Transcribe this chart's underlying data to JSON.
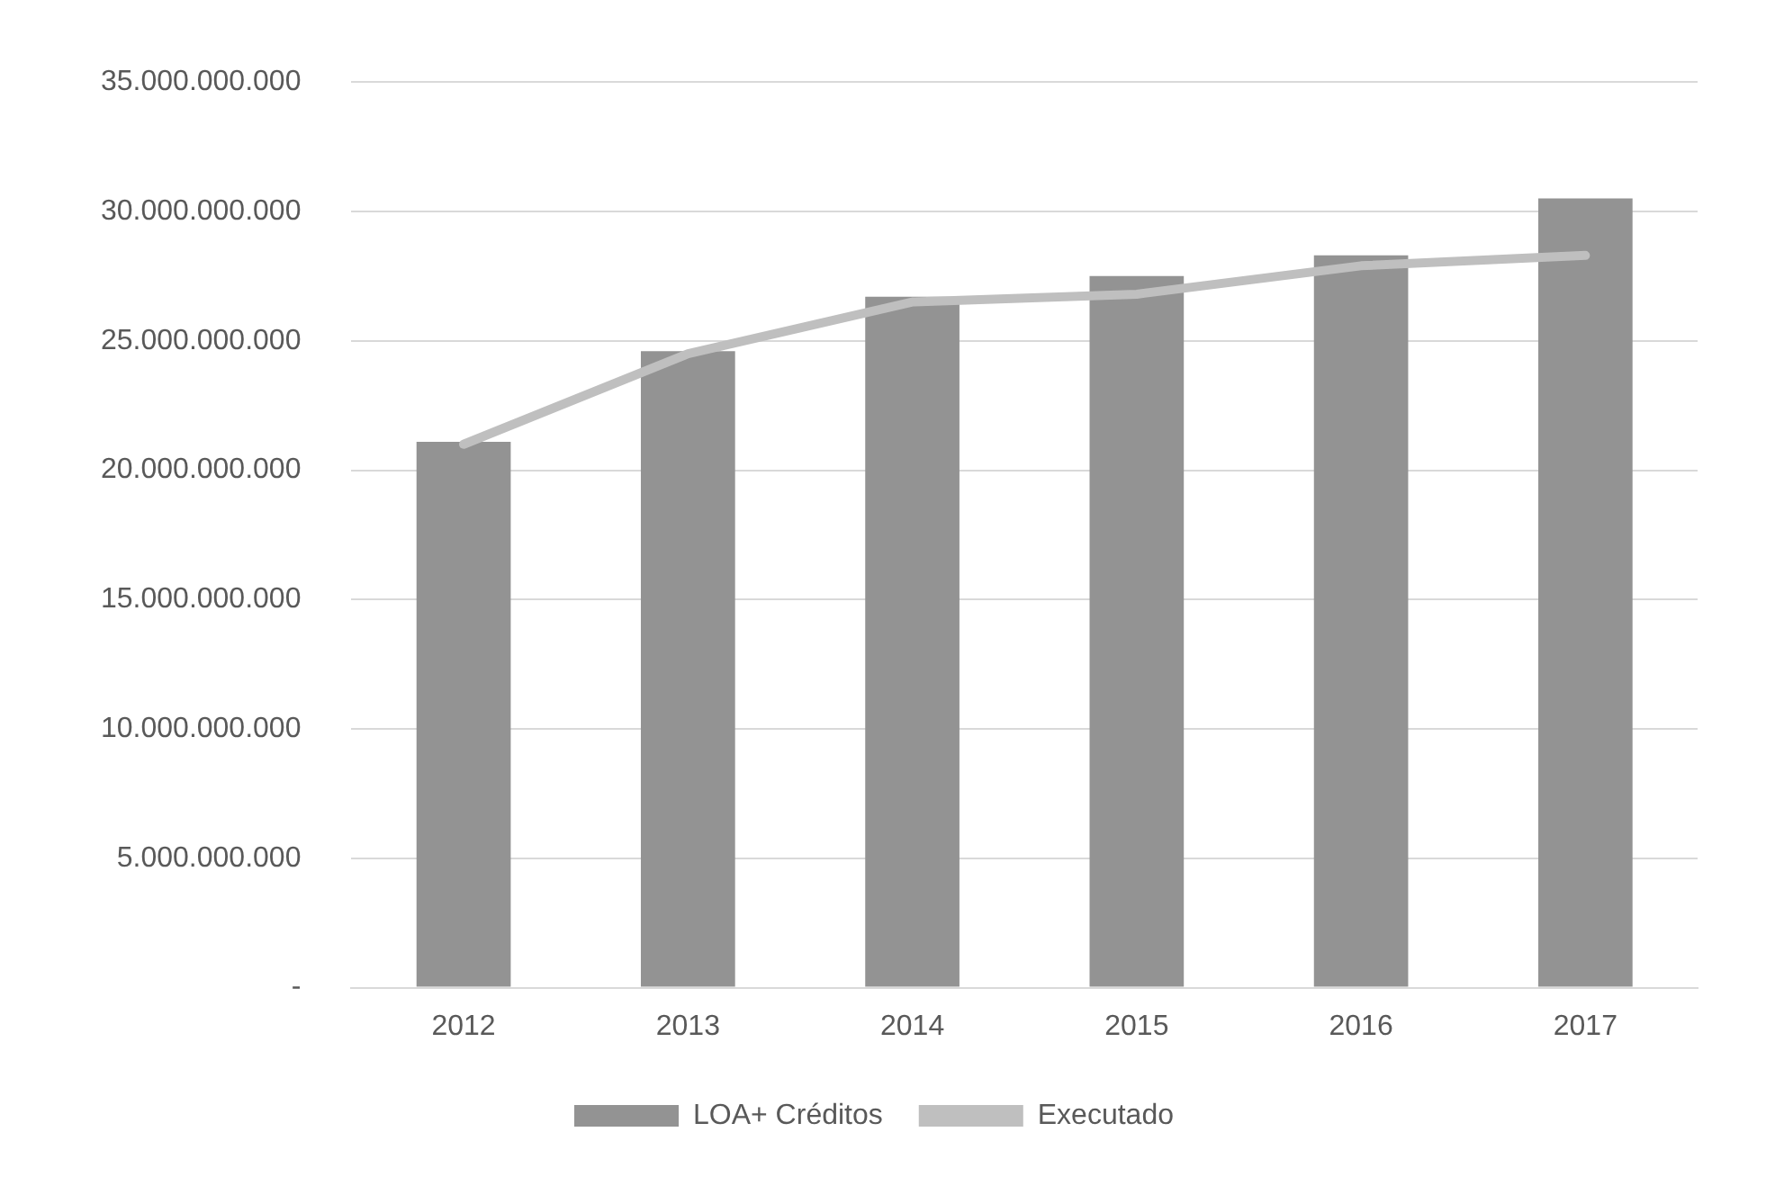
{
  "chart_data": {
    "type": "bar",
    "categories": [
      "2012",
      "2013",
      "2014",
      "2015",
      "2016",
      "2017"
    ],
    "series": [
      {
        "name": "LOA+ Créditos",
        "color": "#939393",
        "values": [
          21100000000,
          24600000000,
          26700000000,
          27500000000,
          28300000000,
          30500000000
        ]
      },
      {
        "name": "Executado",
        "type": "line",
        "color": "#bfbfbf",
        "values": [
          21000000000,
          24500000000,
          26500000000,
          26800000000,
          27900000000,
          28300000000
        ]
      }
    ],
    "ylim": [
      0,
      35000000000
    ],
    "yticks": [
      {
        "value": 0,
        "label": "-"
      },
      {
        "value": 5000000000,
        "label": "5.000.000.000"
      },
      {
        "value": 10000000000,
        "label": "10.000.000.000"
      },
      {
        "value": 15000000000,
        "label": "15.000.000.000"
      },
      {
        "value": 20000000000,
        "label": "20.000.000.000"
      },
      {
        "value": 25000000000,
        "label": "25.000.000.000"
      },
      {
        "value": 30000000000,
        "label": "30.000.000.000"
      },
      {
        "value": 35000000000,
        "label": "35.000.000.000"
      }
    ],
    "grid": "y",
    "legend": "bottom",
    "marker": "none"
  }
}
